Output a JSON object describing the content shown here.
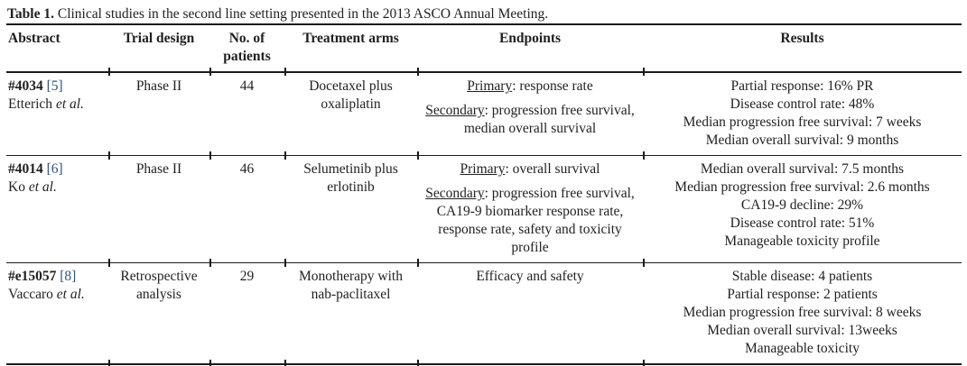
{
  "colors": {
    "text": "#211e1f",
    "reference_link": "#2f5380",
    "rule": "#1b1919"
  },
  "title": {
    "label": "Table 1.",
    "text": "Clinical studies in the second line setting presented in the 2013 ASCO Annual Meeting."
  },
  "header": {
    "abstract": "Abstract",
    "trial_design": "Trial design",
    "no_of_patients": "No. of patients",
    "treatment_arms": "Treatment arms",
    "endpoints": "Endpoints",
    "results": "Results"
  },
  "rows": [
    {
      "abstract_id": "#4034",
      "reference": "[5]",
      "author": "Etterich",
      "etal": "et al.",
      "trial_design": "Phase II",
      "patients": "44",
      "treatment_arms": "Docetaxel plus oxaliplatin",
      "endpoints": {
        "primary_label": "Primary",
        "primary_text": ": response rate",
        "secondary_label": "Secondary",
        "secondary_text": ": progression free survival, median overall survival"
      },
      "results": [
        "Partial response: 16% PR",
        "Disease control rate: 48%",
        "Median progression free survival: 7 weeks",
        "Median overall survival: 9 months"
      ]
    },
    {
      "abstract_id": "#4014",
      "reference": "[6]",
      "author": "Ko",
      "etal": "et al.",
      "trial_design": "Phase II",
      "patients": "46",
      "treatment_arms": "Selumetinib plus erlotinib",
      "endpoints": {
        "primary_label": "Primary",
        "primary_text": ": overall survival",
        "secondary_label": "Secondary",
        "secondary_text": ": progression free survival, CA19-9 biomarker response rate, response rate, safety and toxicity profile"
      },
      "results": [
        "Median overall survival: 7.5 months",
        "Median progression free survival: 2.6 months",
        "CA19-9 decline: 29%",
        "Disease control rate: 51%",
        "Manageable toxicity profile"
      ]
    },
    {
      "abstract_id": "#e15057",
      "reference": "[8]",
      "author": "Vaccaro",
      "etal": "et al.",
      "trial_design": "Retrospective analysis",
      "patients": "29",
      "treatment_arms": "Monotherapy with nab-paclitaxel",
      "endpoints": {
        "plain_text": "Efficacy and safety"
      },
      "results": [
        "Stable disease: 4 patients",
        "Partial response: 2 patients",
        "Median progression free survival: 8 weeks",
        "Median overall survival: 13weeks",
        "Manageable toxicity"
      ]
    }
  ]
}
